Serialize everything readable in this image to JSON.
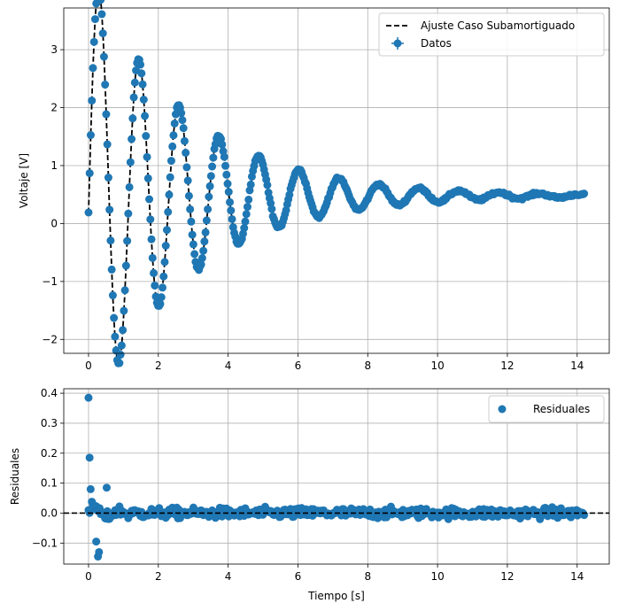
{
  "chart_data": [
    {
      "type": "scatter",
      "ylabel": "Voltaje [V]",
      "xlabel": "",
      "xlim": [
        -0.71,
        14.92
      ],
      "ylim": [
        -2.24,
        3.72
      ],
      "xticks": [
        0,
        2,
        4,
        6,
        8,
        10,
        12,
        14
      ],
      "yticks": [
        -2,
        -1,
        0,
        1,
        2,
        3
      ],
      "grid": true,
      "legend_position": "top-right",
      "legend": [
        "Ajuste Caso Subamortiguado",
        "Datos"
      ],
      "series": [
        {
          "name": "Datos",
          "kind": "scatter-errorbar",
          "color": "#1f77b4",
          "x_range": [
            0.0,
            14.2
          ],
          "count": 450
        },
        {
          "name": "Ajuste Caso Subamortiguado",
          "kind": "dashed-line",
          "color": "#000000",
          "model": "V(t) = 0.48 + exp(-0.36 t) * (-0.30 cos(5.48 t) + 3.95 sin(5.48 t))",
          "x_range": [
            0.0,
            14.2
          ]
        }
      ]
    },
    {
      "type": "scatter",
      "xlabel": "Tiempo [s]",
      "ylabel": "Residuales",
      "xlim": [
        -0.71,
        14.92
      ],
      "ylim": [
        -0.17,
        0.415
      ],
      "xticks": [
        0,
        2,
        4,
        6,
        8,
        10,
        12,
        14
      ],
      "yticks": [
        -0.1,
        0.0,
        0.1,
        0.2,
        0.3,
        0.4
      ],
      "grid": true,
      "legend_position": "top-right",
      "legend": [
        "Residuales"
      ],
      "reference_line": 0.0,
      "series": [
        {
          "name": "Residuales",
          "color": "#1f77b4",
          "highlights": [
            [
              0.0,
              0.385
            ],
            [
              0.03,
              0.185
            ],
            [
              0.06,
              0.08
            ],
            [
              0.27,
              -0.145
            ],
            [
              0.3,
              -0.13
            ],
            [
              0.22,
              -0.095
            ],
            [
              0.52,
              0.085
            ]
          ],
          "typical_spread": 0.03
        }
      ]
    }
  ],
  "labels": {
    "xticks": [
      "0",
      "2",
      "4",
      "6",
      "8",
      "10",
      "12",
      "14"
    ],
    "top_yticks": [
      "−2",
      "−1",
      "0",
      "1",
      "2",
      "3"
    ],
    "bottom_yticks": [
      "−0.1",
      "0.0",
      "0.1",
      "0.2",
      "0.3",
      "0.4"
    ],
    "top_ylabel": "Voltaje [V]",
    "bottom_ylabel": "Residuales",
    "bottom_xlabel": "Tiempo [s]",
    "legend_fit": "Ajuste Caso Subamortiguado",
    "legend_data": "Datos",
    "legend_resid": "Residuales"
  }
}
